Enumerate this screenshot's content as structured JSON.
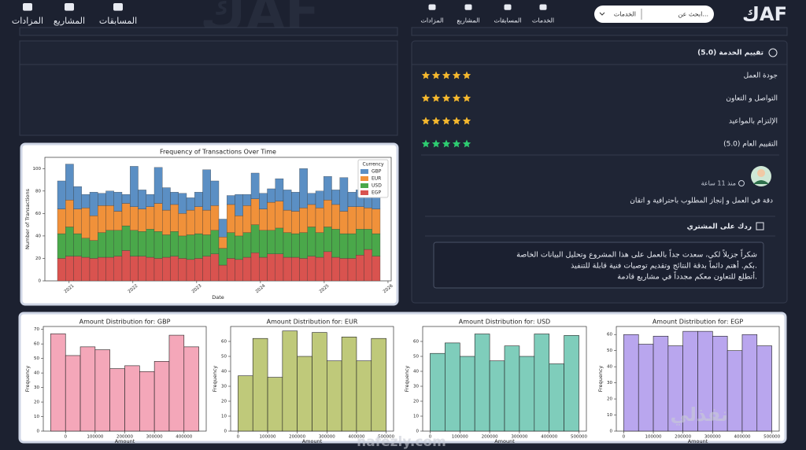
{
  "header": {
    "logo": "كAF",
    "search_placeholder": "ابحث عن...",
    "search_category": "الخدمات",
    "nav": [
      "الخدمات",
      "المسابقات",
      "المشاريع",
      "المزادات"
    ],
    "nav_secondary": [
      "المسابقات",
      "المشاريع",
      "المزادات"
    ]
  },
  "rating": {
    "title": "تقييم الخدمة (5.0)",
    "items": [
      {
        "label": "جودة العمل",
        "stars": 5,
        "color": "#f5b82e"
      },
      {
        "label": "التواصل و التعاون",
        "stars": 5,
        "color": "#f5b82e"
      },
      {
        "label": "الإلتزام بالمواعيد",
        "stars": 5,
        "color": "#f5b82e"
      },
      {
        "label": "التقييم العام (5.0)",
        "stars": 5,
        "color": "#2ecc71"
      }
    ]
  },
  "review": {
    "time": "منذ 11 ساعة",
    "text": "دقة في العمل و إنجاز المطلوب باحترافية و اتقان"
  },
  "reply": {
    "title": "ردك على المشتري",
    "lines": [
      "شكراً جزيلاً لكي، سعدت جداً بالعمل على هذا المشروع وتحليل البيانات الخاصة",
      "بكم. أهتم دائماً بدقة النتائج وتقديم توصيات فنية قابلة للتنفيذ.",
      "أتطلع للتعاون معكم مجدداً في مشاريع قادمة."
    ]
  },
  "chart_data": [
    {
      "type": "stacked_bar",
      "title": "Frequency of Transactions Over Time",
      "xlabel": "Date",
      "ylabel": "Number of Transactions",
      "legend_title": "Currency",
      "legend": "upper right",
      "xlim": [
        2020.62,
        2026.05
      ],
      "xticks": [
        2021,
        2022,
        2023,
        2024,
        2025,
        2026
      ],
      "ylim": [
        0,
        110
      ],
      "yticks": [
        0,
        20,
        40,
        60,
        80,
        100
      ],
      "series": [
        {
          "name": "EGP",
          "color": "#d9534f",
          "values": [
            20,
            22,
            22,
            21,
            20,
            21,
            21,
            22,
            27,
            22,
            22,
            21,
            20,
            21,
            22,
            20,
            19,
            20,
            22,
            24,
            14,
            20,
            19,
            21,
            25,
            21,
            24,
            24,
            21,
            21,
            20,
            22,
            21,
            26,
            21,
            20,
            20,
            23,
            28,
            22
          ]
        },
        {
          "name": "USD",
          "color": "#4aa84a",
          "values": [
            22,
            26,
            20,
            17,
            16,
            22,
            24,
            23,
            22,
            23,
            22,
            25,
            24,
            20,
            22,
            20,
            22,
            22,
            19,
            21,
            15,
            23,
            21,
            22,
            25,
            24,
            21,
            23,
            22,
            21,
            23,
            26,
            22,
            22,
            25,
            22,
            22,
            23,
            18,
            20
          ]
        },
        {
          "name": "EUR",
          "color": "#f0913a",
          "values": [
            22,
            24,
            22,
            27,
            22,
            24,
            22,
            17,
            20,
            21,
            20,
            20,
            25,
            22,
            24,
            20,
            22,
            24,
            22,
            22,
            10,
            25,
            18,
            24,
            23,
            19,
            25,
            24,
            20,
            20,
            22,
            20,
            22,
            24,
            22,
            20,
            24,
            20,
            19,
            22
          ]
        },
        {
          "name": "GBP",
          "color": "#5b8fc4",
          "values": [
            25,
            32,
            20,
            12,
            21,
            11,
            13,
            17,
            8,
            36,
            17,
            11,
            32,
            20,
            11,
            18,
            11,
            13,
            36,
            22,
            16,
            8,
            19,
            10,
            23,
            14,
            12,
            20,
            18,
            17,
            35,
            10,
            15,
            21,
            13,
            30,
            13,
            15,
            24,
            13
          ]
        }
      ]
    },
    {
      "type": "histogram",
      "title": "Amount Distribution for: GBP",
      "xlabel": "Amount",
      "ylabel": "Frequency",
      "color": "#f4a7b9",
      "bins": [
        -50000,
        0,
        50000,
        100000,
        150000,
        200000,
        250000,
        300000,
        350000,
        400000,
        450000
      ],
      "values": [
        67,
        52,
        58,
        56,
        43,
        45,
        41,
        48,
        66,
        58
      ],
      "xlim": [
        -75000,
        475000
      ],
      "xticks": [
        0,
        100000,
        200000,
        300000,
        400000
      ],
      "ylim": [
        0,
        72
      ],
      "yticks": [
        0,
        10,
        20,
        30,
        40,
        50,
        60,
        70
      ]
    },
    {
      "type": "histogram",
      "title": "Amount Distribution for: EUR",
      "xlabel": "Amount",
      "ylabel": "Frequency",
      "color": "#bfc97a",
      "bins": [
        0,
        50000,
        100000,
        150000,
        200000,
        250000,
        300000,
        350000,
        400000,
        450000,
        500000
      ],
      "values": [
        37,
        62,
        36,
        67,
        50,
        66,
        47,
        63,
        47,
        62
      ],
      "xlim": [
        -25000,
        525000
      ],
      "xticks": [
        0,
        100000,
        200000,
        300000,
        400000,
        500000
      ],
      "ylim": [
        0,
        70
      ],
      "yticks": [
        0,
        10,
        20,
        30,
        40,
        50,
        60
      ]
    },
    {
      "type": "histogram",
      "title": "Amount Distribution for: USD",
      "xlabel": "Amount",
      "ylabel": "Frequency",
      "color": "#7fcdbb",
      "bins": [
        0,
        50000,
        100000,
        150000,
        200000,
        250000,
        300000,
        350000,
        400000,
        450000,
        500000
      ],
      "values": [
        52,
        59,
        50,
        65,
        47,
        57,
        50,
        65,
        45,
        64
      ],
      "xlim": [
        -25000,
        525000
      ],
      "xticks": [
        0,
        100000,
        200000,
        300000,
        400000,
        500000
      ],
      "ylim": [
        0,
        70
      ],
      "yticks": [
        0,
        10,
        20,
        30,
        40,
        50,
        60
      ]
    },
    {
      "type": "histogram",
      "title": "Amount Distribution for: EGP",
      "xlabel": "Amount",
      "ylabel": "Frequency",
      "color": "#b9a6ee",
      "bins": [
        0,
        50000,
        100000,
        150000,
        200000,
        250000,
        300000,
        350000,
        400000,
        450000,
        500000
      ],
      "values": [
        60,
        54,
        59,
        53,
        62,
        62,
        59,
        50,
        60,
        53
      ],
      "xlim": [
        -25000,
        525000
      ],
      "xticks": [
        0,
        100000,
        200000,
        300000,
        400000,
        500000
      ],
      "ylim": [
        0,
        65
      ],
      "yticks": [
        0,
        10,
        20,
        30,
        40,
        50,
        60
      ]
    }
  ],
  "watermark": {
    "brand": "نفذلي",
    "url": "nafezly.com"
  }
}
